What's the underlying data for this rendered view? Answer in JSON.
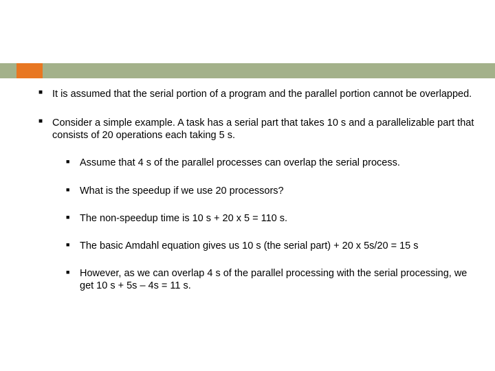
{
  "colors": {
    "band": "#a3b18a",
    "accent": "#e87722",
    "text": "#000000",
    "background": "#ffffff"
  },
  "typography": {
    "body_fontsize": 14.5,
    "line_height": 1.25,
    "font_family": "Arial"
  },
  "bullets": [
    "It is assumed that the serial portion of a program and the parallel portion cannot be overlapped.",
    "Consider a simple example. A task has a serial part that takes 10 s and a parallelizable part that consists of 20 operations each taking 5 s."
  ],
  "sub_bullets": [
    "Assume that 4 s of the parallel processes can overlap the serial process.",
    "What is the speedup if we use 20 processors?",
    "The non-speedup time is 10 s + 20 x 5 = 110 s.",
    "The basic Amdahl equation gives us 10 s (the serial part) + 20 x 5s/20 = 15 s",
    "However, as we can overlap 4 s of the parallel processing with the serial processing, we get 10 s + 5s – 4s = 11 s."
  ]
}
